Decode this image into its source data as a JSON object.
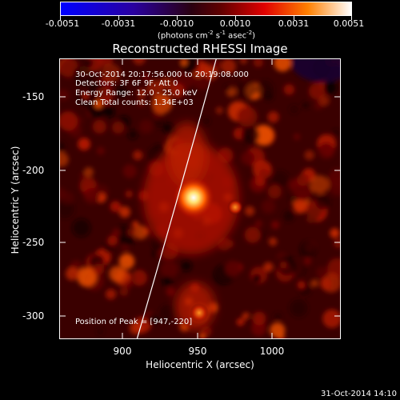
{
  "colorbar": {
    "ticks": [
      "-0.0051",
      "-0.0031",
      "-0.0010",
      "0.0010",
      "0.0031",
      "0.0051"
    ],
    "unit_main": "(photons cm",
    "unit_exp1": "-2",
    "unit_mid": " s",
    "unit_exp2": "-1",
    "unit_mid2": " asec",
    "unit_exp3": "-2",
    "unit_end": ")"
  },
  "title": "Reconstructed RHESSI Image",
  "info": {
    "time": "30-Oct-2014 20:17:56.000 to 20:19:08.000",
    "detectors": "Detectors: 3F 6F 9F, Att 0",
    "energy": "Energy Range: 12.0 - 25.0 keV",
    "clean": "Clean    Total counts: 1.34E+03"
  },
  "peak": "Position of Peak = [947,-220]",
  "axes": {
    "xlabel": "Heliocentric X (arcsec)",
    "ylabel": "Heliocentric Y (arcsec)",
    "xticks": [
      "900",
      "950",
      "1000"
    ],
    "yticks": [
      "-150",
      "-200",
      "-250",
      "-300"
    ]
  },
  "footer": "31-Oct-2014 14:10",
  "colors": {
    "frame": "#ffffff",
    "background": "#000000",
    "limb": "#ffffff"
  }
}
